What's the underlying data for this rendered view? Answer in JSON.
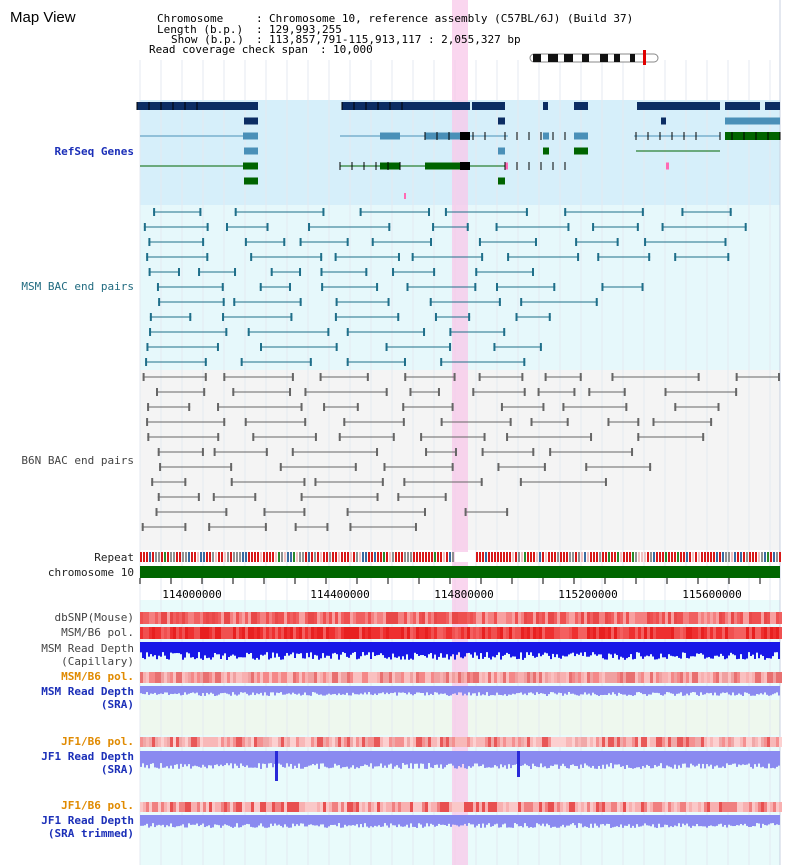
{
  "header": {
    "title": "Map View",
    "chromosome_key": "Chromosome",
    "chromosome_value": "Chromosome 10, reference assembly (C57BL/6J) (Build 37)",
    "length_key": "Length (b.p.)",
    "length_value": "129,993,255",
    "show_key": "Show (b.p.)",
    "show_value": "113,857,791-115,913,117 : 2,055,327 bp",
    "coverage_key": "Read coverage check span",
    "coverage_value": "10,000"
  },
  "tracks": {
    "refseq": "RefSeq Genes",
    "msm_bac": "MSM BAC end pairs",
    "b6n_bac": "B6N BAC end pairs",
    "repeat": "Repeat",
    "chromosome": "chromosome 10",
    "dbsnp": "dbSNP(Mouse)",
    "msm_b6_pol_1": "MSM/B6 pol.",
    "msm_depth_cap_1": "MSM Read Depth",
    "msm_depth_cap_2": "(Capillary)",
    "msm_b6_pol_2": "MSM/B6 pol.",
    "msm_depth_sra_1": "MSM Read Depth",
    "msm_depth_sra_2": "(SRA)",
    "jf1_pol_1": "JF1/B6 pol.",
    "jf1_depth_sra_1": "JF1 Read Depth",
    "jf1_depth_sra_2": "(SRA)",
    "jf1_pol_2": "JF1/B6 pol.",
    "jf1_trim_1": "JF1 Read Depth",
    "jf1_trim_2": "(SRA trimmed)"
  },
  "axis": {
    "ticks": [
      "114000000",
      "114400000",
      "114800000",
      "115200000",
      "115600000"
    ]
  },
  "colors": {
    "refseq_bg": "#d6effa",
    "msm_bg": "#e6f8fb",
    "b6n_bg": "#f4f4f4",
    "lower_bg": "#e9fbfb",
    "highlight": "#f8c8ea",
    "gene_navy": "#0c2d63",
    "gene_mid": "#4a90b8",
    "gene_green": "#006400",
    "bac_teal": "#1f6f8a",
    "bac_gray": "#666666",
    "chromosome": "#006600",
    "depth_blue": "#1818e8",
    "depth_light": "#8a8af0"
  }
}
